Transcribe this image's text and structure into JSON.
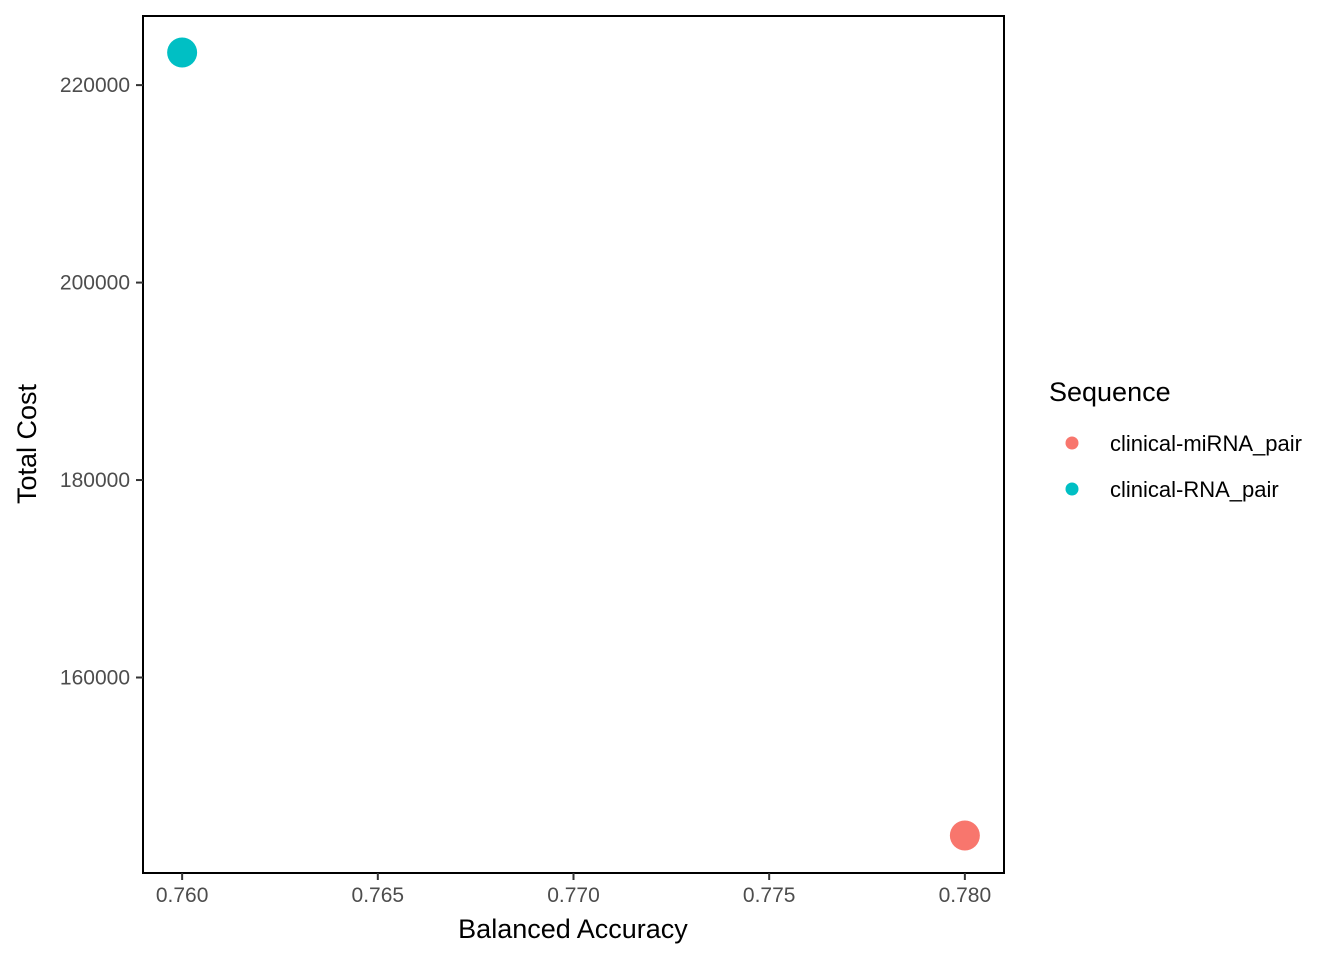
{
  "chart_data": {
    "type": "scatter",
    "title": "",
    "xlabel": "Balanced Accuracy",
    "ylabel": "Total Cost",
    "xlim": [
      0.759,
      0.781
    ],
    "ylim": [
      140200,
      227000
    ],
    "x_ticks": [
      0.76,
      0.765,
      0.77,
      0.775,
      0.78
    ],
    "x_tick_labels": [
      "0.760",
      "0.765",
      "0.770",
      "0.775",
      "0.780"
    ],
    "y_ticks": [
      160000,
      180000,
      200000,
      220000
    ],
    "y_tick_labels": [
      "160000",
      "180000",
      "200000",
      "220000"
    ],
    "grid": false,
    "legend": {
      "title": "Sequence",
      "placement": "right"
    },
    "series": [
      {
        "name": "clinical-miRNA_pair",
        "color": "#F8766D",
        "points": [
          {
            "x": 0.78,
            "y": 144000
          }
        ]
      },
      {
        "name": "clinical-RNA_pair",
        "color": "#00BFC4",
        "points": [
          {
            "x": 0.76,
            "y": 223300
          }
        ]
      }
    ]
  }
}
